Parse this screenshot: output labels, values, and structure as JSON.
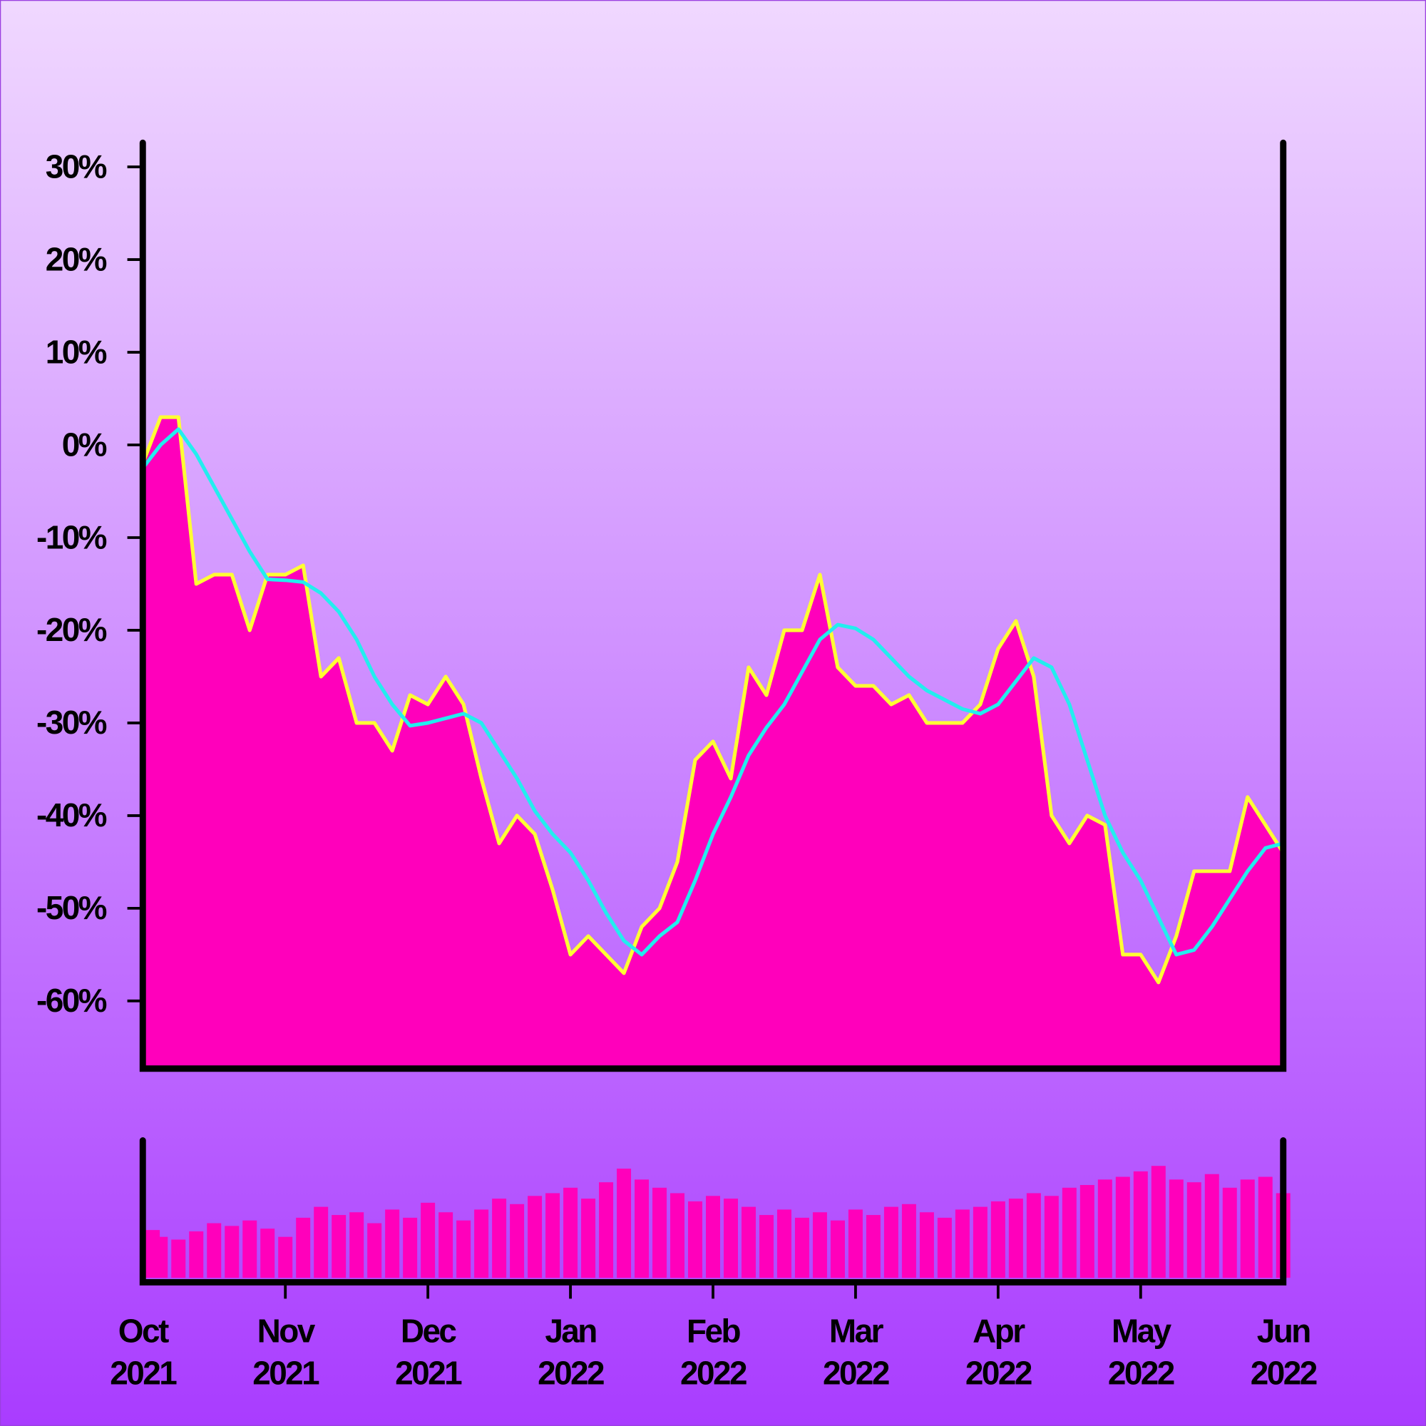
{
  "chart_data": {
    "type": "line",
    "categories": [
      "Oct 2021",
      null,
      null,
      null,
      null,
      null,
      null,
      null,
      "Nov 2021",
      null,
      null,
      null,
      null,
      null,
      null,
      null,
      "Dec 2021",
      null,
      null,
      null,
      null,
      null,
      null,
      null,
      "Jan 2022",
      null,
      null,
      null,
      null,
      null,
      null,
      null,
      "Feb 2022",
      null,
      null,
      null,
      null,
      null,
      null,
      null,
      "Mar 2022",
      null,
      null,
      null,
      null,
      null,
      null,
      null,
      "Apr 2022",
      null,
      null,
      null,
      null,
      null,
      null,
      null,
      "May 2022",
      null,
      null,
      null,
      null,
      null,
      null,
      null,
      "Jun 2022"
    ],
    "series": [
      {
        "color": "#ffff33",
        "fill": "#ff00bb",
        "values": [
          -2,
          3,
          3,
          -15,
          -14,
          -14,
          -20,
          -14,
          -14,
          -13,
          -25,
          -23,
          -30,
          -30,
          -33,
          -27,
          -28,
          -25,
          -28,
          -36,
          -43,
          -40,
          -42,
          -48,
          -55,
          -53,
          -55,
          -57,
          -52,
          -50,
          -45,
          -34,
          -32,
          -36,
          -24,
          -27,
          -20,
          -20,
          -14,
          -24,
          -26,
          -26,
          -28,
          -27,
          -30,
          -30,
          -30,
          -28,
          -22,
          -19,
          -25,
          -40,
          -43,
          -40,
          -41,
          -55,
          -55,
          -58,
          -53,
          -46,
          -46,
          -46,
          -38,
          -41,
          -44
        ]
      },
      {
        "color": "#22eeee",
        "values": [
          -2.5,
          0,
          1.7,
          -1,
          -4.5,
          -8,
          -11.5,
          -14.5,
          -14.6,
          -14.8,
          -16,
          -18,
          -21,
          -25,
          -28,
          -30.3,
          -30,
          -29.5,
          -29,
          -30,
          -33,
          -36,
          -39.5,
          -42,
          -44,
          -47,
          -50.5,
          -53.5,
          -55,
          -53,
          -51.5,
          -47,
          -42,
          -38,
          -33.5,
          -30.5,
          -28,
          -24.5,
          -21,
          -19.4,
          -19.8,
          -21,
          -23,
          -25,
          -26.5,
          -27.5,
          -28.5,
          -29,
          -28,
          -25.5,
          -23,
          -24,
          -28,
          -34,
          -40,
          -44,
          -47,
          -51,
          -55,
          -54.5,
          -52,
          -49,
          -46,
          -43.5,
          -43
        ]
      },
      {
        "color": "#ff00bb",
        "axis": "y2",
        "values": [
          35,
          30,
          28,
          34,
          40,
          38,
          42,
          36,
          30,
          44,
          52,
          46,
          48,
          40,
          50,
          44,
          55,
          48,
          42,
          50,
          58,
          54,
          60,
          62,
          66,
          58,
          70,
          80,
          72,
          66,
          62,
          56,
          60,
          58,
          52,
          46,
          50,
          44,
          48,
          42,
          50,
          46,
          52,
          54,
          48,
          44,
          50,
          52,
          56,
          58,
          62,
          60,
          66,
          68,
          72,
          74,
          78,
          82,
          72,
          70,
          76,
          66,
          72,
          74,
          62
        ]
      }
    ],
    "ylim": [
      -67.3,
      32.8
    ],
    "yticks": [
      {
        "value": 30,
        "label": "30%"
      },
      {
        "value": 20,
        "label": "20%"
      },
      {
        "value": 10,
        "label": "10%"
      },
      {
        "value": 0,
        "label": "0%"
      },
      {
        "value": -10,
        "label": "-10%"
      },
      {
        "value": -20,
        "label": "-20%"
      },
      {
        "value": -30,
        "label": "-30%"
      },
      {
        "value": -40,
        "label": "-40%"
      },
      {
        "value": -50,
        "label": "-50%"
      },
      {
        "value": -60,
        "label": "-60%"
      }
    ],
    "y2lim": [
      0,
      100
    ]
  }
}
